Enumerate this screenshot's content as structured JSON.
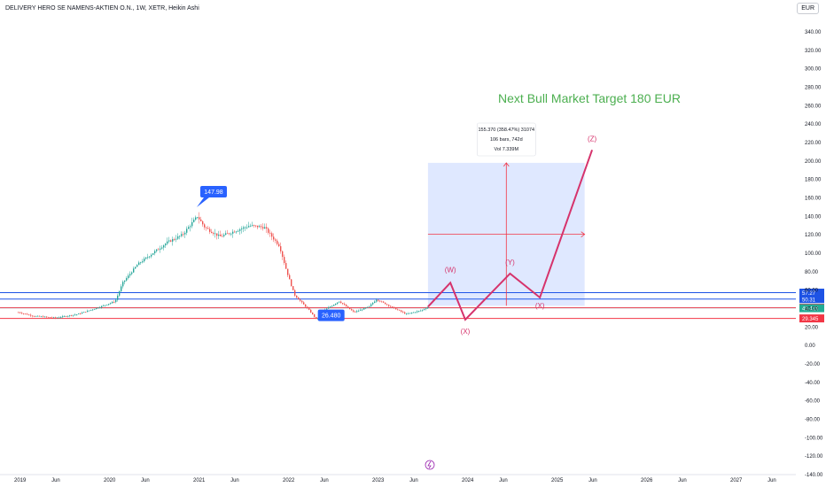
{
  "header": {
    "title": "DELIVERY HERO SE NAMENS-AKTIEN O.N., 1W, XETR, Heikin Ashi",
    "currency": "EUR"
  },
  "annotations": {
    "headline": "Next Bull Market Target  180 EUR",
    "peak_label": "147.98",
    "low_label": "26.480",
    "measure_lines": [
      "155.370 (358.47%) 31074",
      "106 bars, 742d",
      "Vol 7.339M"
    ],
    "wave_labels": [
      "(W)",
      "(X)",
      "(Y)",
      "(X)",
      "(Z)"
    ]
  },
  "chart_data": {
    "type": "candlestick",
    "title": "DELIVERY HERO SE NAMENS-AKTIEN O.N., 1W, XETR, Heikin Ashi",
    "y_ticks": [
      340,
      320,
      300,
      280,
      260,
      240,
      220,
      200,
      180,
      160,
      140,
      120,
      100,
      80,
      60,
      40,
      20,
      0,
      -20,
      -40,
      -60,
      -80,
      -100,
      -120,
      -140
    ],
    "x_ticks": [
      "2019",
      "Jun",
      "2020",
      "Jun",
      "2021",
      "Jun",
      "2022",
      "Jun",
      "2023",
      "Jun",
      "2024",
      "Jun",
      "2025",
      "Jun",
      "2026",
      "Jun",
      "2027",
      "Jun"
    ],
    "ylim": [
      -140,
      350
    ],
    "price_series": [
      [
        "2019-01",
        36
      ],
      [
        "2019-03",
        32
      ],
      [
        "2019-06",
        30
      ],
      [
        "2019-09",
        34
      ],
      [
        "2019-12",
        42
      ],
      [
        "2020-02",
        48
      ],
      [
        "2020-03",
        68
      ],
      [
        "2020-05",
        88
      ],
      [
        "2020-07",
        100
      ],
      [
        "2020-09",
        112
      ],
      [
        "2020-11",
        120
      ],
      [
        "2021-01",
        140
      ],
      [
        "2021-02",
        128
      ],
      [
        "2021-04",
        118
      ],
      [
        "2021-06",
        124
      ],
      [
        "2021-08",
        130
      ],
      [
        "2021-10",
        128
      ],
      [
        "2021-12",
        108
      ],
      [
        "2022-01",
        80
      ],
      [
        "2022-02",
        55
      ],
      [
        "2022-04",
        38
      ],
      [
        "2022-05",
        28
      ],
      [
        "2022-06",
        38
      ],
      [
        "2022-08",
        48
      ],
      [
        "2022-10",
        36
      ],
      [
        "2022-12",
        42
      ],
      [
        "2023-01",
        50
      ],
      [
        "2023-03",
        42
      ],
      [
        "2023-05",
        34
      ],
      [
        "2023-07",
        38
      ],
      [
        "2023-08",
        42
      ]
    ],
    "projection": {
      "points": [
        [
          "2023-08",
          42
        ],
        [
          "2023-11",
          68
        ],
        [
          "2024-01",
          28
        ],
        [
          "2024-07",
          78
        ],
        [
          "2024-11",
          52
        ],
        [
          "2025-06",
          212
        ]
      ],
      "labels": [
        "(W)",
        "(X)",
        "(Y)",
        "(X)",
        "(Z)"
      ]
    },
    "measure_box": {
      "from_date": "2023-08",
      "to_date": "2025-05",
      "from_value": 43,
      "to_value": 198
    },
    "horizontal_levels": [
      {
        "value": 57.27,
        "label": "57.27",
        "color": "#1e53e5"
      },
      {
        "value": 50.31,
        "label": "50.31",
        "color": "#1e53e5"
      },
      {
        "value": 40.92,
        "label": "40.920",
        "color": "#f23645"
      },
      {
        "value": 40.415,
        "label": "40.415",
        "color": "#22ab94"
      },
      {
        "value": 29.345,
        "label": "29.345",
        "color": "#f23645"
      }
    ],
    "markers": [
      {
        "date": "2021-01",
        "value": 147.98,
        "label": "147.98"
      },
      {
        "date": "2022-05",
        "value": 26.48,
        "label": "26.480"
      }
    ]
  }
}
